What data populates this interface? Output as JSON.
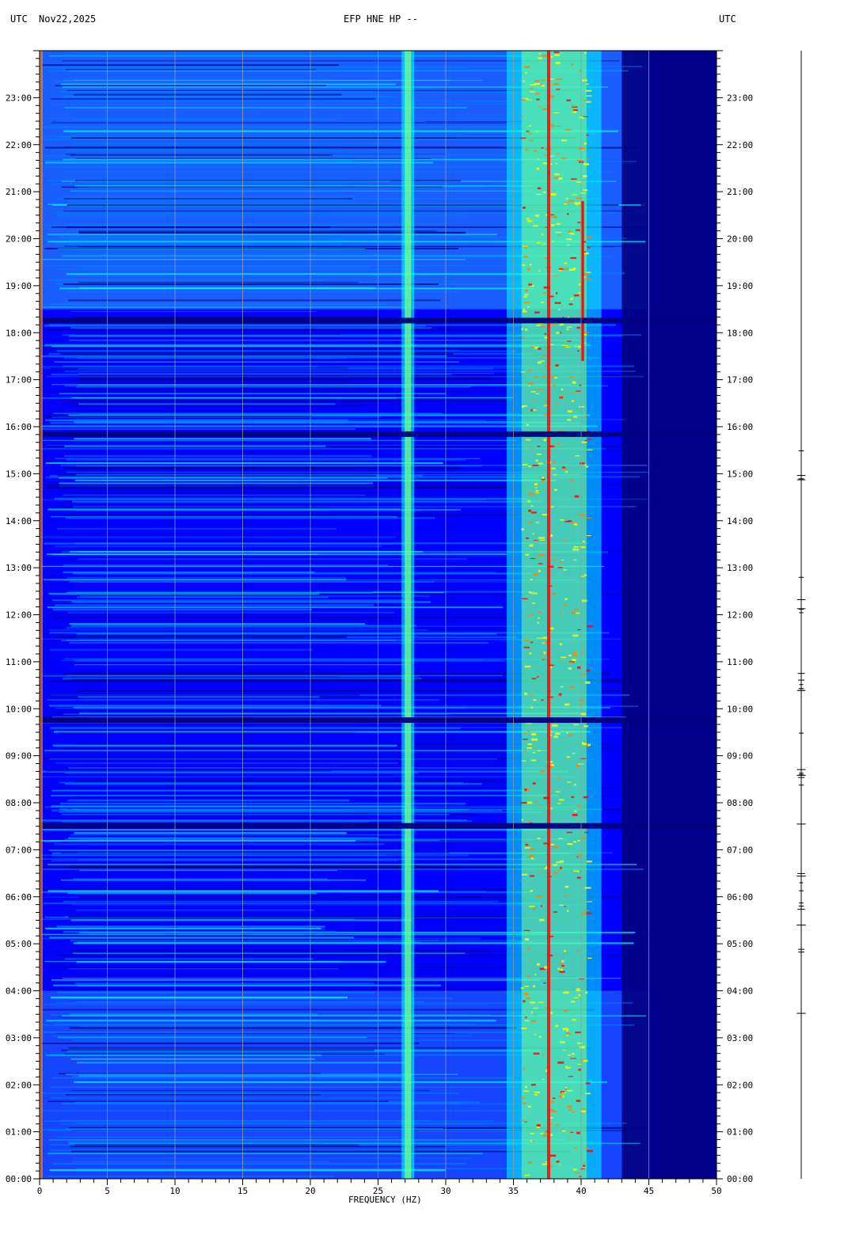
{
  "header": {
    "left_utc": "UTC",
    "date": "Nov22,2025",
    "station": "EFP HNE HP --",
    "right_utc": "UTC"
  },
  "chart_data": {
    "type": "heatmap",
    "title": "EFP HNE HP --",
    "date": "Nov22,2025",
    "xlabel": "FREQUENCY (HZ)",
    "ylabel_left": "UTC",
    "ylabel_right": "UTC",
    "xlim": [
      0,
      50
    ],
    "ylim_hours": [
      0,
      24
    ],
    "x_ticks": [
      "0",
      "5",
      "10",
      "15",
      "20",
      "25",
      "30",
      "35",
      "40",
      "45",
      "50"
    ],
    "y_ticks": [
      "00:00",
      "01:00",
      "02:00",
      "03:00",
      "04:00",
      "05:00",
      "06:00",
      "07:00",
      "08:00",
      "09:00",
      "10:00",
      "11:00",
      "12:00",
      "13:00",
      "14:00",
      "15:00",
      "16:00",
      "17:00",
      "18:00",
      "19:00",
      "20:00",
      "21:00",
      "22:00",
      "23:00"
    ],
    "colormap": [
      "#00007f",
      "#0000ff",
      "#0080ff",
      "#00ffff",
      "#80ff80",
      "#ffff00",
      "#ff8000",
      "#ff0000",
      "#7f0000"
    ],
    "features": {
      "persistent_lines_hz": [
        27.2,
        37.6,
        40.1
      ],
      "broadband_band_hz": [
        35,
        41
      ],
      "energy_cutoff_hz": 45,
      "dark_gaps_utc": [
        "07:30",
        "09:45",
        "15:50",
        "18:15"
      ]
    }
  }
}
